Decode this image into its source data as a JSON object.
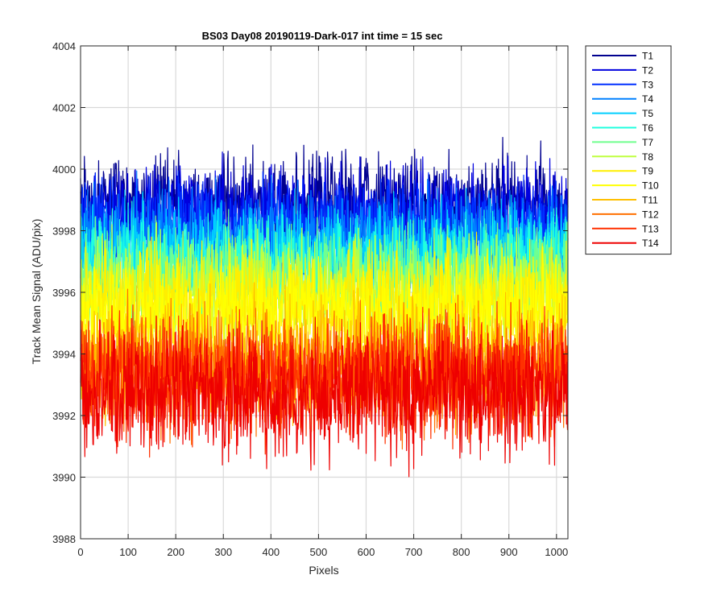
{
  "chart_data": {
    "type": "line",
    "title": "BS03 Day08 20190119-Dark-017 int time = 15 sec",
    "xlabel": "Pixels",
    "ylabel": "Track Mean Signal (ADU/pix)",
    "xlim": [
      0,
      1024
    ],
    "ylim": [
      3988,
      4004
    ],
    "xticks": [
      0,
      100,
      200,
      300,
      400,
      500,
      600,
      700,
      800,
      900,
      1000
    ],
    "yticks": [
      3988,
      3990,
      3992,
      3994,
      3996,
      3998,
      4000,
      4002,
      4004
    ],
    "grid": true,
    "legend_position": "outside-top-right",
    "series": [
      {
        "name": "T1",
        "color": "#00008f",
        "mean": 3998.9,
        "noise": 0.75,
        "min": 3996.5,
        "max": 4001.6
      },
      {
        "name": "T2",
        "color": "#0000df",
        "mean": 3998.5,
        "noise": 0.75,
        "min": 3996.0,
        "max": 4001.4
      },
      {
        "name": "T3",
        "color": "#0030ff",
        "mean": 3998.1,
        "noise": 0.75,
        "min": 3995.6,
        "max": 4001.0
      },
      {
        "name": "T4",
        "color": "#0080ff",
        "mean": 3997.7,
        "noise": 0.8,
        "min": 3995.0,
        "max": 4000.8
      },
      {
        "name": "T5",
        "color": "#00cfff",
        "mean": 3997.3,
        "noise": 0.8,
        "min": 3994.6,
        "max": 4002.0
      },
      {
        "name": "T6",
        "color": "#20ffdf",
        "mean": 3996.9,
        "noise": 0.8,
        "min": 3994.2,
        "max": 4000.0
      },
      {
        "name": "T7",
        "color": "#70ff8f",
        "mean": 3996.5,
        "noise": 0.8,
        "min": 3993.8,
        "max": 3999.6
      },
      {
        "name": "T8",
        "color": "#bfff40",
        "mean": 3996.1,
        "noise": 0.8,
        "min": 3993.4,
        "max": 3999.2
      },
      {
        "name": "T9",
        "color": "#ffef00",
        "mean": 3995.7,
        "noise": 0.85,
        "min": 3993.0,
        "max": 3998.8
      },
      {
        "name": "T10",
        "color": "#ffff00",
        "mean": 3995.3,
        "noise": 0.85,
        "min": 3992.5,
        "max": 3998.4
      },
      {
        "name": "T11",
        "color": "#ffbf00",
        "mean": 3993.8,
        "noise": 0.95,
        "min": 3990.0,
        "max": 3997.4
      },
      {
        "name": "T12",
        "color": "#ff7000",
        "mean": 3993.5,
        "noise": 0.95,
        "min": 3990.5,
        "max": 3997.4
      },
      {
        "name": "T13",
        "color": "#ff3000",
        "mean": 3993.2,
        "noise": 0.95,
        "min": 3990.3,
        "max": 3997.0
      },
      {
        "name": "T14",
        "color": "#ee0000",
        "mean": 3992.8,
        "noise": 1.0,
        "min": 3988.7,
        "max": 3996.5
      }
    ]
  }
}
